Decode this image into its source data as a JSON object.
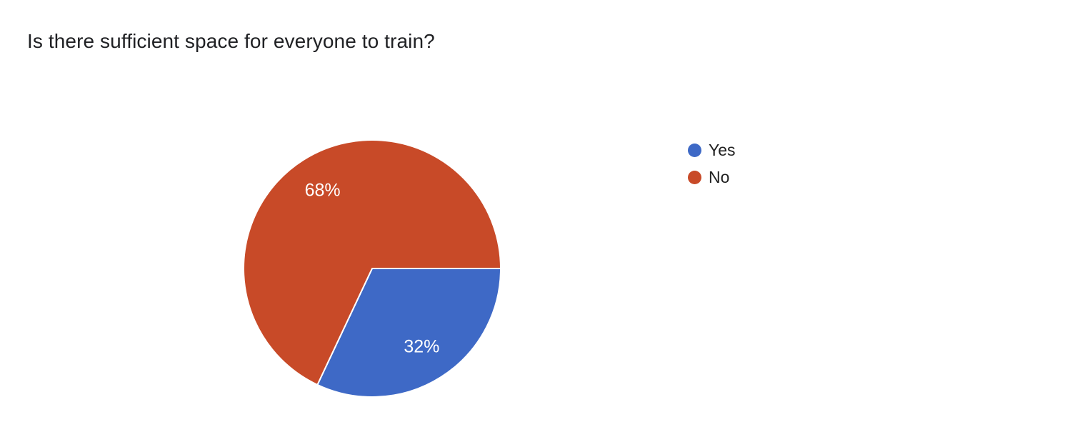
{
  "header": {
    "title": "Is there sufficient space for everyone to train?"
  },
  "chart_data": {
    "type": "pie",
    "title": "Is there sufficient space for everyone to train?",
    "series": [
      {
        "label": "Yes",
        "value_percent": 32,
        "slice_label": "32%",
        "color": "#3E69C6"
      },
      {
        "label": "No",
        "value_percent": 68,
        "slice_label": "68%",
        "color": "#C84A28"
      }
    ],
    "start_angle_deg": 0,
    "direction": "clockwise",
    "legend_position": "right",
    "slice_label_color": "#ffffff",
    "slice_separator_color": "#ffffff",
    "background_color": "#ffffff"
  }
}
